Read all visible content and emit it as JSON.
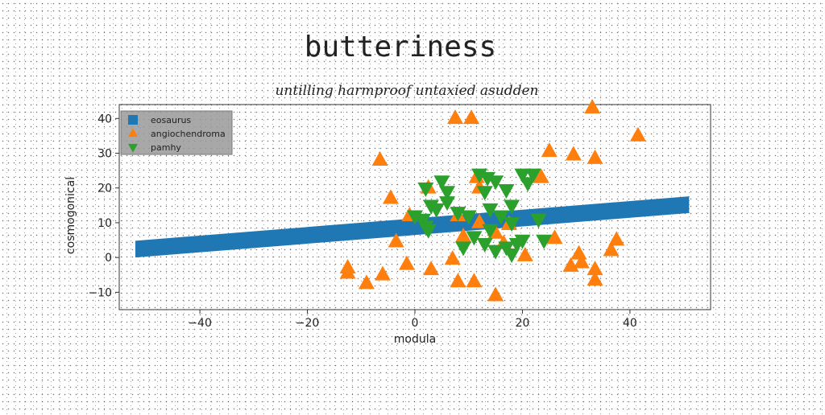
{
  "chart_data": {
    "type": "scatter",
    "title": "butteriness",
    "subtitle": "untilling harmproof untaxied asudden",
    "xlabel": "modula",
    "ylabel": "cosmogonical",
    "xlim": [
      -55,
      55
    ],
    "ylim": [
      -15,
      44
    ],
    "xticks": [
      -40,
      -20,
      0,
      20,
      40
    ],
    "yticks": [
      -10,
      0,
      10,
      20,
      30,
      40
    ],
    "grid": false,
    "legend_placement": "top-left",
    "series": [
      {
        "name": "eosaurus",
        "kind": "band",
        "color": "#1f77b4",
        "x": [
          -52,
          51
        ],
        "y": [
          2.4,
          15.2
        ],
        "band_half_width": 2.4
      },
      {
        "name": "angiochendroma",
        "kind": "scatter",
        "marker": "triangle-up",
        "color": "#ff7f0e",
        "points": [
          [
            7.5,
            40
          ],
          [
            10.5,
            40
          ],
          [
            33,
            43
          ],
          [
            41.5,
            35
          ],
          [
            25,
            30.5
          ],
          [
            29.5,
            29.5
          ],
          [
            33.5,
            28.5
          ],
          [
            -6.5,
            28
          ],
          [
            11.5,
            23
          ],
          [
            12,
            20
          ],
          [
            23.5,
            23
          ],
          [
            -4.5,
            17
          ],
          [
            -1,
            12
          ],
          [
            2.5,
            20
          ],
          [
            8,
            12
          ],
          [
            12,
            10
          ],
          [
            9,
            6
          ],
          [
            -3.5,
            4.5
          ],
          [
            17.5,
            9.5
          ],
          [
            15,
            7
          ],
          [
            26,
            5.5
          ],
          [
            37.5,
            5
          ],
          [
            36.5,
            2
          ],
          [
            30.5,
            1
          ],
          [
            -1.5,
            -2
          ],
          [
            3,
            -3.5
          ],
          [
            7,
            -0.5
          ],
          [
            29,
            -2.5
          ],
          [
            31,
            -1.5
          ],
          [
            33.5,
            -3.5
          ],
          [
            -12.5,
            -3
          ],
          [
            -12.5,
            -4.5
          ],
          [
            -6,
            -5
          ],
          [
            -9,
            -7.5
          ],
          [
            8,
            -7
          ],
          [
            11,
            -7
          ],
          [
            33.5,
            -6.5
          ],
          [
            15,
            -11
          ],
          [
            20.5,
            0.5
          ],
          [
            16.5,
            4
          ]
        ]
      },
      {
        "name": "pamhy",
        "kind": "scatter",
        "marker": "triangle-down",
        "color": "#2ca02c",
        "points": [
          [
            2,
            20
          ],
          [
            5,
            22
          ],
          [
            6,
            19
          ],
          [
            12,
            24
          ],
          [
            13.5,
            23
          ],
          [
            15,
            22
          ],
          [
            13,
            19
          ],
          [
            17,
            19.5
          ],
          [
            18,
            15
          ],
          [
            20,
            24
          ],
          [
            22,
            24
          ],
          [
            21,
            21.5
          ],
          [
            1.5,
            11
          ],
          [
            2,
            9
          ],
          [
            2.5,
            8
          ],
          [
            4,
            14
          ],
          [
            8,
            13
          ],
          [
            10,
            12
          ],
          [
            14,
            14
          ],
          [
            16,
            12
          ],
          [
            18,
            10
          ],
          [
            11,
            6
          ],
          [
            13,
            4
          ],
          [
            14,
            8
          ],
          [
            15,
            2
          ],
          [
            17,
            3
          ],
          [
            18,
            1
          ],
          [
            19,
            4
          ],
          [
            20,
            5
          ],
          [
            9,
            3
          ],
          [
            23,
            11
          ],
          [
            24,
            5
          ],
          [
            6,
            16
          ],
          [
            0,
            12
          ],
          [
            3,
            15
          ]
        ]
      }
    ]
  }
}
